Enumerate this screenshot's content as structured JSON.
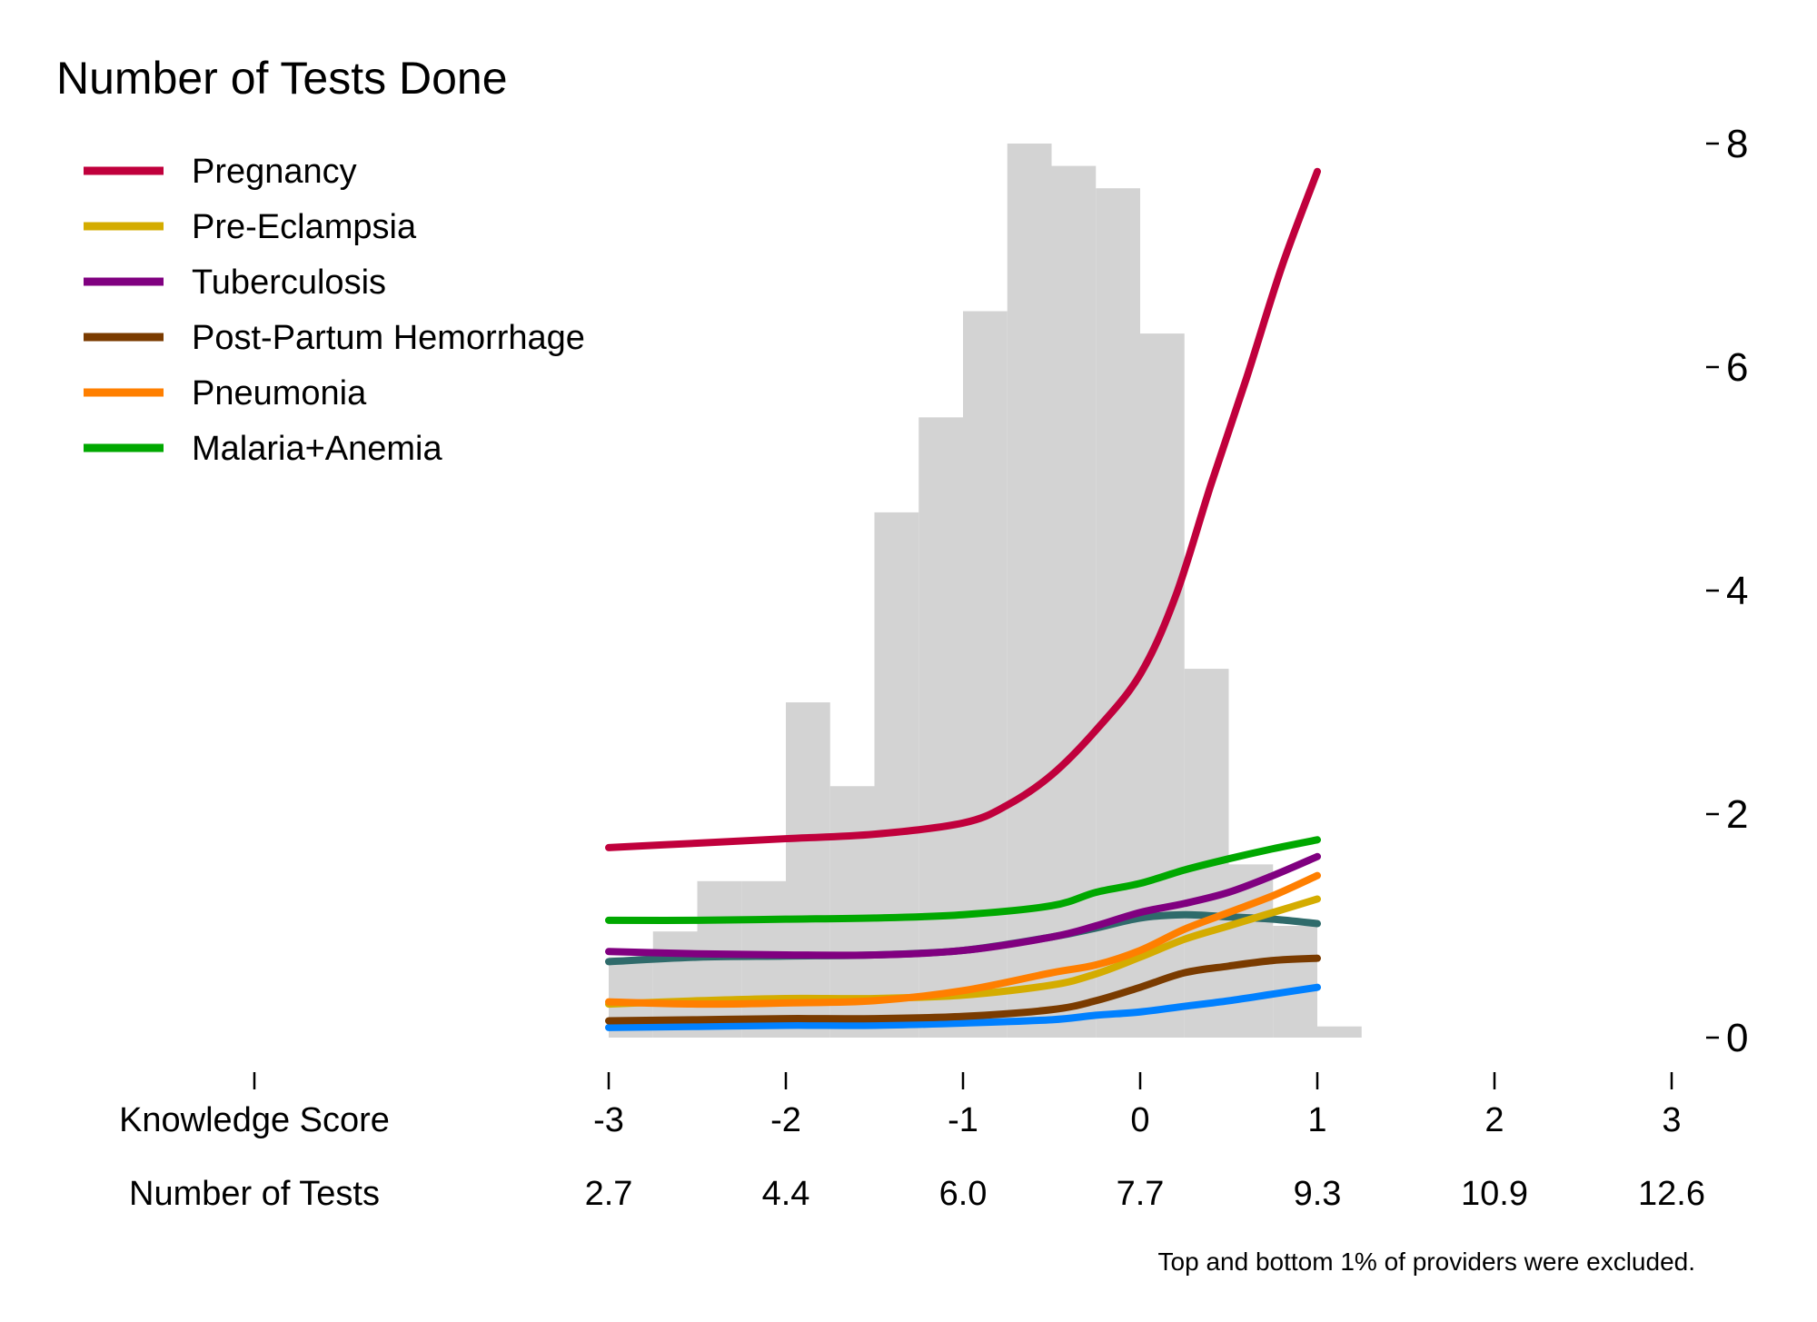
{
  "chart_data": {
    "type": "line",
    "title": "Number of Tests Done",
    "footnote": "Top and bottom 1% of providers were excluded.",
    "xlim": [
      -3,
      3
    ],
    "ylim": [
      0,
      8
    ],
    "colors": {
      "histogram": "#d3d3d3",
      "extra_series": "#2f6b6b"
    },
    "x_axis_rows": [
      {
        "label": "Knowledge Score",
        "ticks": [
          "-3",
          "-2",
          "-1",
          "0",
          "1",
          "2",
          "3"
        ]
      },
      {
        "label": "Number of Tests",
        "ticks": [
          "2.7",
          "4.4",
          "6.0",
          "7.7",
          "9.3",
          "10.9",
          "12.6"
        ]
      }
    ],
    "x_tick_values": [
      -3,
      -2,
      -1,
      0,
      1,
      2,
      3
    ],
    "y_ticks": [
      0,
      2,
      4,
      6,
      8
    ],
    "histogram": {
      "bin_edges": [
        -3.0,
        -2.75,
        -2.5,
        -2.25,
        -2.0,
        -1.75,
        -1.5,
        -1.25,
        -1.0,
        -0.75,
        -0.5,
        -0.25,
        0.0,
        0.25,
        0.5,
        0.75,
        1.0,
        1.25
      ],
      "heights": [
        0.72,
        0.95,
        1.4,
        1.4,
        3.0,
        2.25,
        4.7,
        5.55,
        6.5,
        8.0,
        7.8,
        7.6,
        6.3,
        3.3,
        1.55,
        1.0,
        0.1
      ]
    },
    "series": [
      {
        "name": "Pregnancy",
        "color": "#c0003c",
        "x": [
          -3.0,
          -2.5,
          -2.0,
          -1.5,
          -1.0,
          -0.75,
          -0.5,
          -0.25,
          0.0,
          0.2,
          0.4,
          0.6,
          0.8,
          1.0
        ],
        "y": [
          1.7,
          1.74,
          1.78,
          1.82,
          1.92,
          2.08,
          2.35,
          2.75,
          3.25,
          3.95,
          4.95,
          5.9,
          6.9,
          7.75
        ]
      },
      {
        "name": "Pre-Eclampsia",
        "color": "#d4ac00",
        "x": [
          -3.0,
          -2.5,
          -2.0,
          -1.5,
          -1.0,
          -0.5,
          -0.25,
          0.0,
          0.25,
          0.5,
          0.75,
          1.0
        ],
        "y": [
          0.3,
          0.33,
          0.35,
          0.35,
          0.38,
          0.47,
          0.57,
          0.72,
          0.88,
          1.0,
          1.12,
          1.24
        ]
      },
      {
        "name": "Tuberculosis",
        "color": "#800080",
        "x": [
          -3.0,
          -2.5,
          -2.0,
          -1.5,
          -1.0,
          -0.5,
          -0.25,
          0.0,
          0.25,
          0.5,
          0.75,
          1.0
        ],
        "y": [
          0.77,
          0.75,
          0.74,
          0.74,
          0.78,
          0.9,
          1.0,
          1.12,
          1.2,
          1.3,
          1.45,
          1.62
        ]
      },
      {
        "name": "Post-Partum Hemorrhage",
        "color": "#7a3b00",
        "x": [
          -3.0,
          -2.5,
          -2.0,
          -1.5,
          -1.0,
          -0.5,
          -0.25,
          0.0,
          0.25,
          0.5,
          0.75,
          1.0
        ],
        "y": [
          0.15,
          0.16,
          0.17,
          0.17,
          0.19,
          0.25,
          0.33,
          0.45,
          0.58,
          0.64,
          0.69,
          0.71
        ]
      },
      {
        "name": "Pneumonia",
        "color": "#ff7f00",
        "x": [
          -3.0,
          -2.5,
          -2.0,
          -1.5,
          -1.0,
          -0.5,
          -0.25,
          0.0,
          0.25,
          0.5,
          0.75,
          1.0
        ],
        "y": [
          0.32,
          0.3,
          0.31,
          0.33,
          0.42,
          0.58,
          0.65,
          0.78,
          0.97,
          1.12,
          1.27,
          1.45
        ]
      },
      {
        "name": "Malaria+Anemia",
        "color": "#00a800",
        "x": [
          -3.0,
          -2.5,
          -2.0,
          -1.5,
          -1.0,
          -0.5,
          -0.25,
          0.0,
          0.25,
          0.5,
          0.75,
          1.0
        ],
        "y": [
          1.05,
          1.05,
          1.06,
          1.07,
          1.1,
          1.18,
          1.3,
          1.38,
          1.5,
          1.6,
          1.69,
          1.77
        ]
      },
      {
        "color": "#0080ff",
        "x": [
          -3.0,
          -2.5,
          -2.0,
          -1.5,
          -1.0,
          -0.5,
          -0.25,
          0.0,
          0.25,
          0.5,
          0.75,
          1.0
        ],
        "y": [
          0.09,
          0.1,
          0.11,
          0.11,
          0.13,
          0.16,
          0.2,
          0.23,
          0.28,
          0.33,
          0.39,
          0.45
        ]
      },
      {
        "color": "#2f6b6b",
        "x": [
          -3.0,
          -2.5,
          -2.0,
          -1.5,
          -1.0,
          -0.5,
          -0.25,
          0.0,
          0.25,
          0.5,
          0.75,
          1.0
        ],
        "y": [
          0.68,
          0.72,
          0.73,
          0.74,
          0.78,
          0.9,
          0.98,
          1.07,
          1.1,
          1.08,
          1.06,
          1.02
        ]
      }
    ],
    "legend": [
      "Pregnancy",
      "Pre-Eclampsia",
      "Tuberculosis",
      "Post-Partum Hemorrhage",
      "Pneumonia",
      "Malaria+Anemia"
    ],
    "legend_position": "top-left"
  }
}
